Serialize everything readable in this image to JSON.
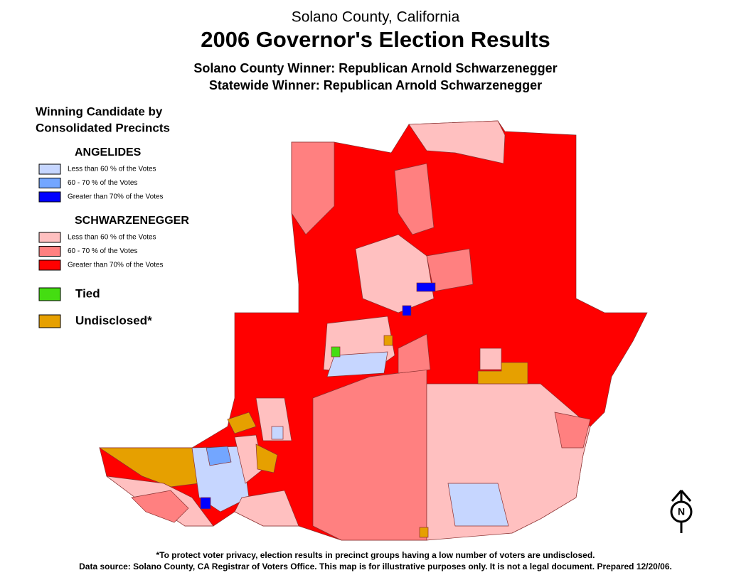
{
  "header": {
    "county": "Solano County, California",
    "title": "2006 Governor's Election Results",
    "county_winner": "Solano County Winner: Republican Arnold Schwarzenegger",
    "statewide_winner": "Statewide Winner: Republican Arnold Schwarzenegger"
  },
  "legend": {
    "title_lines": [
      "Winning Candidate by",
      "Consolidated Precincts"
    ],
    "groups": [
      {
        "name": "ANGELIDES",
        "items": [
          {
            "label": "Less than 60 % of the Votes",
            "color": "#c6d6ff"
          },
          {
            "label": "60 - 70 % of the Votes",
            "color": "#73a6ff"
          },
          {
            "label": "Greater than 70% of the Votes",
            "color": "#0000ff"
          }
        ]
      },
      {
        "name": "SCHWARZENEGGER",
        "items": [
          {
            "label": "Less than 60 % of the Votes",
            "color": "#ffc0c0"
          },
          {
            "label": "60 - 70 % of the Votes",
            "color": "#ff8080"
          },
          {
            "label": "Greater than 70% of the Votes",
            "color": "#ff0000"
          }
        ]
      }
    ],
    "other": [
      {
        "label": "Tied",
        "color": "#44dd11"
      },
      {
        "label": "Undisclosed*",
        "color": "#e6a000"
      }
    ]
  },
  "compass": {
    "letter": "N"
  },
  "footer": {
    "note": "*To protect voter privacy, election results in precinct groups having a low number of voters are undisclosed.",
    "source": "Data source: Solano County, CA Registrar of Voters Office. This map is for illustrative purposes only. It is not a legal document. Prepared 12/20/06."
  }
}
